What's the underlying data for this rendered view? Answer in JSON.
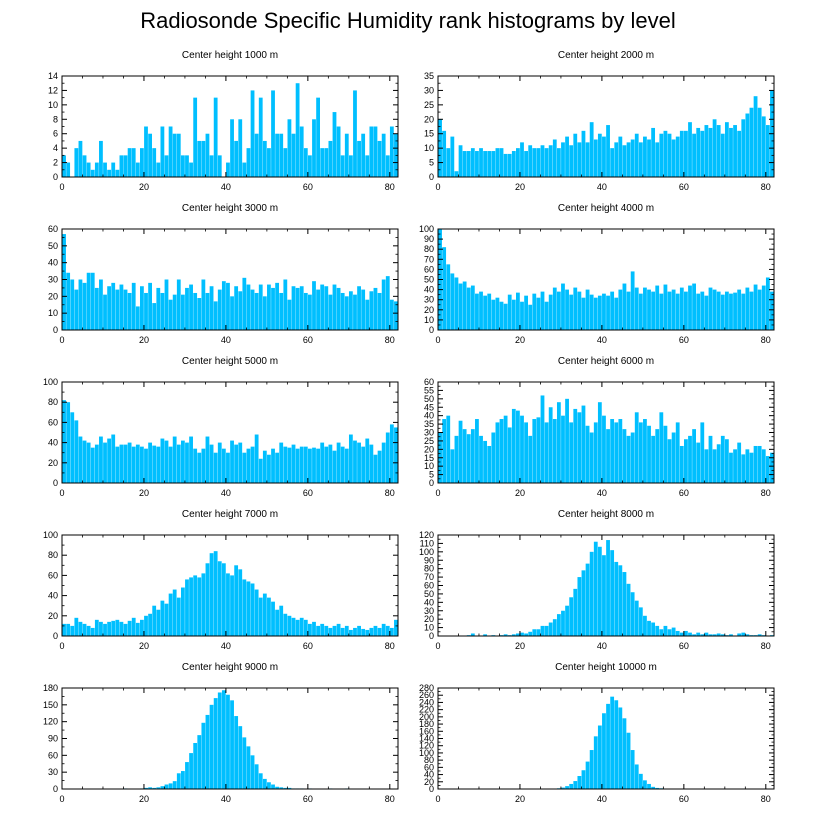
{
  "title": "Radiosonde Specific Humidity rank histograms by level",
  "bar_color": "#00bfff",
  "chart_data": [
    {
      "type": "bar",
      "title": "Center height 1000 m",
      "xlim": [
        0,
        82
      ],
      "ylim": [
        0,
        14
      ],
      "xticks": [
        0,
        20,
        40,
        60,
        80
      ],
      "yticks": [
        0,
        2,
        4,
        6,
        8,
        10,
        12,
        14
      ],
      "values": [
        3,
        2,
        0,
        4,
        5,
        3,
        2,
        1,
        2,
        5,
        2,
        1,
        2,
        1,
        3,
        3,
        4,
        4,
        2,
        4,
        7,
        6,
        4,
        2,
        7,
        3,
        7,
        6,
        6,
        3,
        3,
        2,
        11,
        5,
        5,
        6,
        3,
        11,
        3,
        0,
        2,
        8,
        5,
        8,
        2,
        4,
        12,
        6,
        11,
        5,
        4,
        12,
        6,
        6,
        4,
        8,
        6,
        13,
        7,
        4,
        3,
        8,
        11,
        4,
        4,
        5,
        9,
        7,
        3,
        6,
        3,
        12,
        5,
        6,
        3,
        7,
        7,
        5,
        6,
        3,
        7,
        6
      ]
    },
    {
      "type": "bar",
      "title": "Center height 2000 m",
      "xlim": [
        0,
        82
      ],
      "ylim": [
        0,
        35
      ],
      "xticks": [
        0,
        20,
        40,
        60,
        80
      ],
      "yticks": [
        0,
        5,
        10,
        15,
        20,
        25,
        30,
        35
      ],
      "values": [
        20,
        16,
        10,
        14,
        2,
        11,
        9,
        9,
        10,
        9,
        10,
        9,
        9,
        9,
        10,
        10,
        8,
        8,
        9,
        10,
        12,
        9,
        11,
        10,
        10,
        11,
        10,
        11,
        13,
        10,
        12,
        14,
        11,
        15,
        12,
        16,
        12,
        19,
        13,
        15,
        14,
        18,
        10,
        12,
        14,
        11,
        12,
        13,
        15,
        12,
        14,
        13,
        17,
        12,
        15,
        16,
        15,
        13,
        14,
        16,
        16,
        19,
        15,
        17,
        16,
        18,
        17,
        20,
        18,
        15,
        19,
        17,
        18,
        16,
        20,
        22,
        24,
        28,
        24,
        21,
        18,
        30
      ]
    },
    {
      "type": "bar",
      "title": "Center height 3000 m",
      "xlim": [
        0,
        82
      ],
      "ylim": [
        0,
        60
      ],
      "xticks": [
        0,
        20,
        40,
        60,
        80
      ],
      "yticks": [
        0,
        10,
        20,
        30,
        40,
        50,
        60
      ],
      "values": [
        57,
        34,
        30,
        24,
        30,
        28,
        34,
        34,
        25,
        30,
        21,
        26,
        28,
        24,
        27,
        24,
        22,
        28,
        14,
        26,
        22,
        28,
        16,
        25,
        22,
        30,
        18,
        21,
        30,
        21,
        25,
        27,
        22,
        19,
        30,
        22,
        26,
        17,
        24,
        29,
        28,
        20,
        26,
        23,
        31,
        27,
        24,
        22,
        27,
        20,
        27,
        25,
        28,
        22,
        30,
        18,
        26,
        25,
        26,
        22,
        21,
        29,
        24,
        27,
        26,
        21,
        27,
        25,
        22,
        20,
        23,
        21,
        26,
        24,
        18,
        23,
        25,
        22,
        30,
        32,
        18,
        17
      ]
    },
    {
      "type": "bar",
      "title": "Center height 4000 m",
      "xlim": [
        0,
        82
      ],
      "ylim": [
        0,
        100
      ],
      "xticks": [
        0,
        20,
        40,
        60,
        80
      ],
      "yticks": [
        0,
        10,
        20,
        30,
        40,
        50,
        60,
        70,
        80,
        90,
        100
      ],
      "values": [
        100,
        82,
        65,
        56,
        52,
        46,
        48,
        42,
        44,
        36,
        38,
        34,
        36,
        30,
        32,
        28,
        26,
        35,
        30,
        37,
        28,
        34,
        25,
        36,
        32,
        38,
        28,
        35,
        42,
        38,
        46,
        40,
        35,
        42,
        38,
        32,
        40,
        35,
        32,
        34,
        36,
        34,
        38,
        32,
        40,
        46,
        38,
        58,
        42,
        36,
        42,
        40,
        38,
        44,
        36,
        45,
        38,
        40,
        36,
        42,
        38,
        44,
        46,
        36,
        38,
        34,
        42,
        40,
        38,
        35,
        38,
        36,
        37,
        40,
        36,
        42,
        38,
        45,
        40,
        44,
        52,
        38
      ]
    },
    {
      "type": "bar",
      "title": "Center height 5000 m",
      "xlim": [
        0,
        82
      ],
      "ylim": [
        0,
        100
      ],
      "xticks": [
        0,
        20,
        40,
        60,
        80
      ],
      "yticks": [
        0,
        20,
        40,
        60,
        80,
        100
      ],
      "values": [
        82,
        80,
        70,
        62,
        46,
        42,
        40,
        35,
        38,
        46,
        40,
        44,
        48,
        36,
        38,
        38,
        40,
        36,
        38,
        36,
        34,
        40,
        37,
        36,
        44,
        42,
        36,
        46,
        38,
        42,
        40,
        46,
        34,
        30,
        34,
        46,
        38,
        30,
        40,
        34,
        30,
        42,
        38,
        40,
        30,
        34,
        36,
        48,
        24,
        32,
        28,
        34,
        30,
        40,
        36,
        35,
        38,
        34,
        36,
        36,
        34,
        35,
        34,
        40,
        36,
        38,
        32,
        40,
        36,
        34,
        48,
        42,
        40,
        36,
        44,
        38,
        28,
        32,
        40,
        50,
        58,
        55
      ]
    },
    {
      "type": "bar",
      "title": "Center height 6000 m",
      "xlim": [
        0,
        82
      ],
      "ylim": [
        0,
        60
      ],
      "xticks": [
        0,
        20,
        40,
        60,
        80
      ],
      "yticks": [
        0,
        5,
        10,
        15,
        20,
        25,
        30,
        35,
        40,
        45,
        50,
        55,
        60
      ],
      "values": [
        30,
        38,
        40,
        20,
        28,
        37,
        32,
        29,
        32,
        38,
        28,
        25,
        22,
        30,
        36,
        38,
        40,
        33,
        44,
        43,
        40,
        36,
        28,
        38,
        39,
        52,
        36,
        45,
        38,
        48,
        40,
        50,
        36,
        44,
        42,
        46,
        34,
        30,
        36,
        48,
        40,
        32,
        38,
        36,
        38,
        32,
        28,
        30,
        42,
        36,
        38,
        34,
        28,
        32,
        42,
        34,
        26,
        30,
        36,
        22,
        26,
        28,
        32,
        24,
        36,
        20,
        28,
        20,
        23,
        28,
        26,
        18,
        20,
        24,
        17,
        20,
        18,
        22,
        22,
        20,
        16,
        18
      ]
    },
    {
      "type": "bar",
      "title": "Center height 7000 m",
      "xlim": [
        0,
        82
      ],
      "ylim": [
        0,
        100
      ],
      "xticks": [
        0,
        20,
        40,
        60,
        80
      ],
      "yticks": [
        0,
        20,
        40,
        60,
        80,
        100
      ],
      "values": [
        12,
        12,
        10,
        18,
        14,
        12,
        10,
        8,
        16,
        14,
        12,
        14,
        15,
        16,
        14,
        12,
        15,
        18,
        13,
        16,
        20,
        22,
        30,
        26,
        35,
        32,
        42,
        46,
        38,
        48,
        56,
        58,
        60,
        58,
        62,
        72,
        82,
        84,
        74,
        72,
        62,
        60,
        70,
        66,
        56,
        54,
        52,
        46,
        38,
        42,
        38,
        34,
        26,
        30,
        22,
        20,
        18,
        16,
        18,
        16,
        12,
        14,
        10,
        12,
        10,
        8,
        10,
        12,
        8,
        10,
        6,
        8,
        10,
        7,
        6,
        8,
        10,
        8,
        12,
        10,
        8,
        16
      ]
    },
    {
      "type": "bar",
      "title": "Center height 8000 m",
      "xlim": [
        0,
        82
      ],
      "ylim": [
        0,
        120
      ],
      "xticks": [
        0,
        20,
        40,
        60,
        80
      ],
      "yticks": [
        0,
        10,
        20,
        30,
        40,
        50,
        60,
        70,
        80,
        90,
        100,
        110,
        120
      ],
      "values": [
        0,
        0,
        0,
        0,
        0,
        0,
        0,
        1,
        3,
        0,
        0,
        2,
        0,
        1,
        0,
        1,
        2,
        1,
        2,
        3,
        4,
        3,
        5,
        8,
        8,
        12,
        12,
        16,
        20,
        26,
        30,
        36,
        46,
        56,
        70,
        78,
        86,
        100,
        112,
        106,
        96,
        114,
        102,
        88,
        84,
        76,
        62,
        52,
        42,
        34,
        24,
        18,
        16,
        12,
        8,
        12,
        8,
        10,
        6,
        4,
        6,
        4,
        2,
        4,
        2,
        4,
        2,
        2,
        3,
        2,
        1,
        2,
        0,
        3,
        4,
        2,
        1,
        1,
        2,
        1,
        0,
        1
      ]
    },
    {
      "type": "bar",
      "title": "Center height 9000 m",
      "xlim": [
        0,
        82
      ],
      "ylim": [
        0,
        180
      ],
      "xticks": [
        0,
        20,
        40,
        60,
        80
      ],
      "yticks": [
        0,
        30,
        60,
        90,
        120,
        150,
        180
      ],
      "values": [
        0,
        0,
        0,
        0,
        0,
        0,
        0,
        0,
        0,
        0,
        0,
        0,
        0,
        0,
        0,
        1,
        0,
        0,
        0,
        1,
        2,
        3,
        2,
        3,
        5,
        8,
        10,
        14,
        28,
        32,
        48,
        64,
        82,
        96,
        118,
        132,
        150,
        162,
        172,
        176,
        168,
        158,
        130,
        112,
        92,
        76,
        60,
        44,
        28,
        18,
        12,
        8,
        4,
        3,
        2,
        2,
        1,
        1,
        1,
        0,
        1,
        0,
        0,
        0,
        0,
        1,
        0,
        0,
        0,
        1,
        0,
        0,
        0,
        0,
        0,
        0,
        0,
        0,
        0,
        0,
        0,
        0
      ]
    },
    {
      "type": "bar",
      "title": "Center height 10000 m",
      "xlim": [
        0,
        82
      ],
      "ylim": [
        0,
        280
      ],
      "xticks": [
        0,
        20,
        40,
        60,
        80
      ],
      "yticks": [
        0,
        20,
        40,
        60,
        80,
        100,
        120,
        140,
        160,
        180,
        200,
        220,
        240,
        260,
        280
      ],
      "values": [
        0,
        0,
        0,
        0,
        0,
        0,
        0,
        0,
        0,
        0,
        0,
        0,
        0,
        0,
        0,
        0,
        0,
        0,
        0,
        0,
        0,
        0,
        0,
        0,
        0,
        0,
        0,
        0,
        1,
        2,
        4,
        8,
        14,
        22,
        36,
        52,
        76,
        108,
        146,
        176,
        210,
        236,
        256,
        246,
        226,
        196,
        156,
        108,
        68,
        42,
        24,
        14,
        6,
        3,
        2,
        1,
        1,
        0,
        0,
        0,
        0,
        0,
        0,
        0,
        0,
        0,
        0,
        0,
        0,
        0,
        0,
        0,
        0,
        0,
        0,
        0,
        0,
        0,
        0,
        0,
        0,
        0
      ]
    }
  ]
}
